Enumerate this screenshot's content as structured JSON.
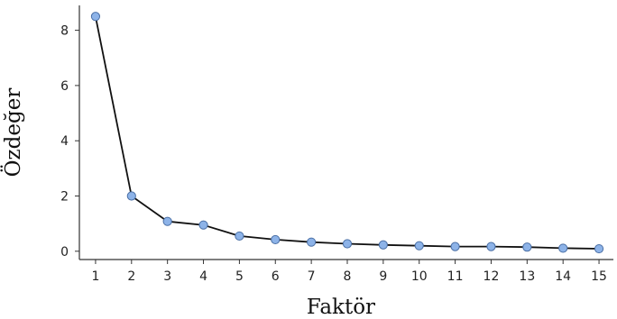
{
  "chart_data": {
    "type": "line",
    "xlabel": "Faktör",
    "ylabel": "Özdeğer",
    "x": [
      1,
      2,
      3,
      4,
      5,
      6,
      7,
      8,
      9,
      10,
      11,
      12,
      13,
      14,
      15
    ],
    "series": [
      {
        "values": [
          8.5,
          2.0,
          1.08,
          0.95,
          0.55,
          0.42,
          0.33,
          0.27,
          0.23,
          0.2,
          0.17,
          0.17,
          0.15,
          0.11,
          0.09
        ],
        "line_color": "#111111",
        "marker_color": "#8db3e8",
        "marker_edge_color": "#4a6fa5"
      }
    ],
    "xticks": [
      "1",
      "2",
      "3",
      "4",
      "5",
      "6",
      "7",
      "8",
      "9",
      "10",
      "11",
      "12",
      "13",
      "14",
      "15"
    ],
    "yticks": [
      "0",
      "2",
      "4",
      "6",
      "8"
    ],
    "xlim": [
      0.55,
      15.4
    ],
    "ylim": [
      -0.3,
      8.9
    ],
    "grid": false,
    "legend": "none"
  }
}
